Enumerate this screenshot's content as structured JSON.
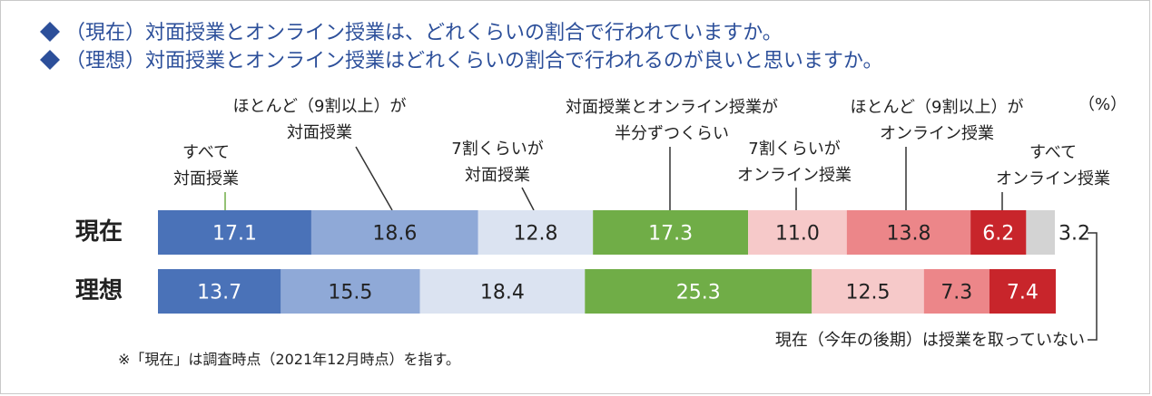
{
  "questions": [
    "（現在）対面授業とオンライン授業は、どれくらいの割合で行われていますか。",
    "（理想）対面授業とオンライン授業はどれくらいの割合で行われるのが良いと思いますか。"
  ],
  "unit_label": "（%）",
  "note": "※「現在」は調査時点（2021年12月時点）を指す。",
  "no_class_label": "現在（今年の後期）は授業を取っていない",
  "chart_data": {
    "type": "bar",
    "orientation": "horizontal-stacked-100",
    "categories": [
      "現在",
      "理想"
    ],
    "series": [
      {
        "name": "すべて対面授業",
        "legend_lines": [
          "すべて",
          "対面授業"
        ],
        "color": "#4a72b8",
        "text_color": "#ffffff",
        "values": [
          17.1,
          13.7
        ]
      },
      {
        "name": "ほとんど（9割以上）が対面授業",
        "legend_lines": [
          "ほとんど（9割以上）が",
          "対面授業"
        ],
        "color": "#8fa9d7",
        "text_color": "#222222",
        "values": [
          18.6,
          15.5
        ]
      },
      {
        "name": "7割くらいが対面授業",
        "legend_lines": [
          "7割くらいが",
          "対面授業"
        ],
        "color": "#dbe3f1",
        "text_color": "#222222",
        "values": [
          12.8,
          18.4
        ]
      },
      {
        "name": "対面授業とオンライン授業が半分ずつくらい",
        "legend_lines": [
          "対面授業とオンライン授業が",
          "半分ずつくらい"
        ],
        "color": "#70ad47",
        "text_color": "#ffffff",
        "values": [
          17.3,
          25.3
        ]
      },
      {
        "name": "7割くらいがオンライン授業",
        "legend_lines": [
          "7割くらいが",
          "オンライン授業"
        ],
        "color": "#f6c9c9",
        "text_color": "#222222",
        "values": [
          11.0,
          12.5
        ]
      },
      {
        "name": "ほとんど（9割以上）がオンライン授業",
        "legend_lines": [
          "ほとんど（9割以上）が",
          "オンライン授業"
        ],
        "color": "#ec8689",
        "text_color": "#222222",
        "values": [
          13.8,
          7.3
        ]
      },
      {
        "name": "すべてオンライン授業",
        "legend_lines": [
          "すべて",
          "オンライン授業"
        ],
        "color": "#c8252b",
        "text_color": "#ffffff",
        "values": [
          6.2,
          7.4
        ]
      },
      {
        "name": "現在（今年の後期）は授業を取っていない",
        "legend_lines": [],
        "color": "#d3d3d3",
        "text_color": "#222222",
        "values": [
          3.2,
          null
        ]
      }
    ],
    "xlim": [
      0,
      100
    ]
  }
}
